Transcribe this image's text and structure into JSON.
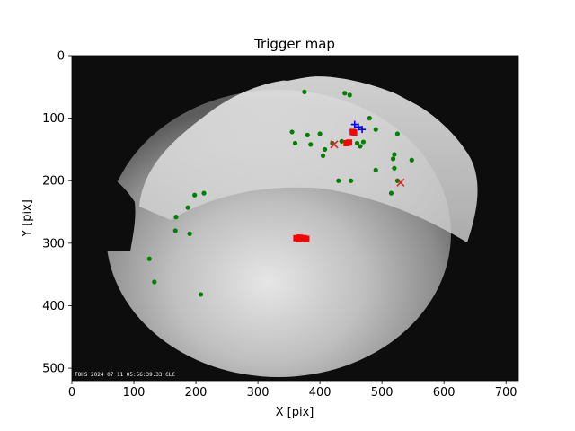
{
  "chart_data": {
    "type": "scatter",
    "title": "Trigger map",
    "xlabel": "X [pix]",
    "ylabel": "Y [pix]",
    "xlim": [
      0,
      720
    ],
    "ylim": [
      520,
      0
    ],
    "xticks": [
      0,
      100,
      200,
      300,
      400,
      500,
      600,
      700
    ],
    "yticks": [
      0,
      100,
      200,
      300,
      400,
      500
    ],
    "background": "all-sky camera image",
    "image_stamp": "TOHS 2024 07 11 05:56:39.33 CLC",
    "colors": {
      "green": "#008000",
      "red": "#ff0000",
      "blue": "#0000ff",
      "cross": "#d62728",
      "sky_dark": "#0d0d0d"
    },
    "series": [
      {
        "marker": "dot",
        "color": "green",
        "points": [
          [
            375,
            58
          ],
          [
            440,
            60
          ],
          [
            448,
            63
          ],
          [
            480,
            100
          ],
          [
            490,
            118
          ],
          [
            355,
            122
          ],
          [
            380,
            127
          ],
          [
            400,
            125
          ],
          [
            360,
            140
          ],
          [
            385,
            142
          ],
          [
            408,
            150
          ],
          [
            420,
            140
          ],
          [
            435,
            137
          ],
          [
            460,
            140
          ],
          [
            470,
            138
          ],
          [
            465,
            145
          ],
          [
            405,
            160
          ],
          [
            525,
            125
          ],
          [
            520,
            158
          ],
          [
            518,
            165
          ],
          [
            548,
            167
          ],
          [
            520,
            180
          ],
          [
            490,
            183
          ],
          [
            430,
            200
          ],
          [
            450,
            200
          ],
          [
            525,
            200
          ],
          [
            515,
            220
          ],
          [
            213,
            220
          ],
          [
            198,
            223
          ],
          [
            187,
            243
          ],
          [
            168,
            258
          ],
          [
            167,
            280
          ],
          [
            190,
            285
          ],
          [
            125,
            325
          ],
          [
            133,
            362
          ],
          [
            208,
            382
          ]
        ]
      },
      {
        "marker": "square",
        "color": "red",
        "points": [
          [
            453,
            122
          ],
          [
            455,
            123
          ],
          [
            443,
            140
          ],
          [
            447,
            139
          ],
          [
            362,
            292
          ],
          [
            366,
            293
          ],
          [
            370,
            292
          ],
          [
            374,
            292
          ],
          [
            378,
            293
          ],
          [
            367,
            291
          ]
        ]
      },
      {
        "marker": "plus",
        "color": "blue",
        "points": [
          [
            456,
            110
          ],
          [
            462,
            114
          ],
          [
            468,
            118
          ]
        ]
      },
      {
        "marker": "x",
        "color": "cross",
        "points": [
          [
            423,
            142
          ],
          [
            530,
            203
          ]
        ]
      }
    ]
  }
}
